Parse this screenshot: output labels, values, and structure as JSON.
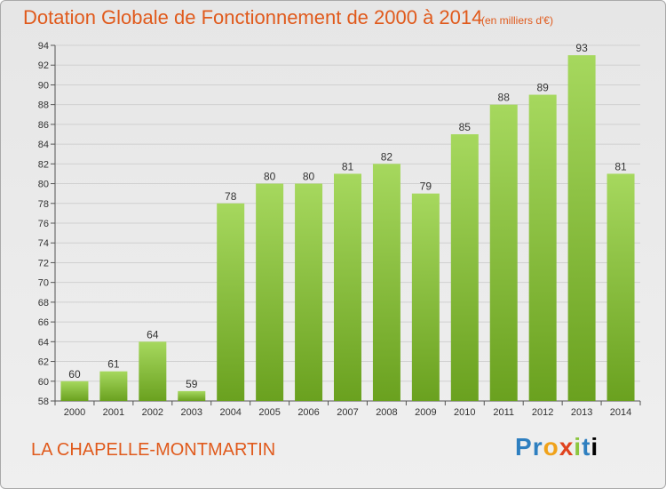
{
  "header": {
    "title": "Dotation Globale de Fonctionnement de 2000 à 2014",
    "unit": "(en milliers d'€)"
  },
  "footer": {
    "commune": "LA CHAPELLE-MONTMARTIN",
    "brand_letters": [
      "P",
      "r",
      "o",
      "x",
      "i",
      "t",
      "i"
    ]
  },
  "colors": {
    "title": "#e05a1c",
    "bar_light": "#a6d85e",
    "bar_dark": "#6aa11f",
    "grid": "#d0d0d0"
  },
  "chart_data": {
    "type": "bar",
    "title": "Dotation Globale de Fonctionnement de 2000 à 2014",
    "subtitle": "(en milliers d'€)",
    "xlabel": "",
    "ylabel": "",
    "categories": [
      "2000",
      "2001",
      "2002",
      "2003",
      "2004",
      "2005",
      "2006",
      "2007",
      "2008",
      "2009",
      "2010",
      "2011",
      "2012",
      "2013",
      "2014"
    ],
    "values": [
      60,
      61,
      64,
      59,
      78,
      80,
      80,
      81,
      82,
      79,
      85,
      88,
      89,
      93,
      81
    ],
    "ylim": [
      58,
      94
    ],
    "yticks": [
      58,
      60,
      62,
      64,
      66,
      68,
      70,
      72,
      74,
      76,
      78,
      80,
      82,
      84,
      86,
      88,
      90,
      92,
      94
    ],
    "grid": true,
    "legend": "none"
  }
}
